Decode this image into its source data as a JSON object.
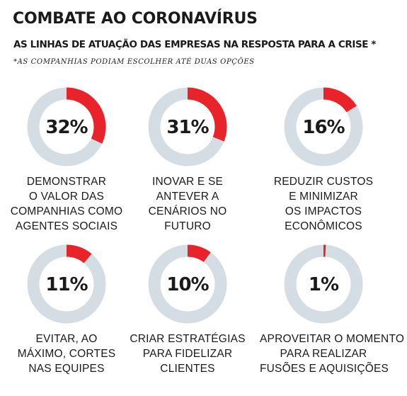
{
  "header": {
    "title": "COMBATE AO CORONAVÍRUS",
    "subtitle": "AS LINHAS DE ATUAÇÃO DAS EMPRESAS NA RESPOSTA PARA A CRISE *",
    "note": "*AS COMPANHIAS PODIAM ESCOLHER ATÉ DUAS OPÇÕES"
  },
  "colors": {
    "accent": "#e8232a",
    "track": "#d5dde4",
    "text": "#1a1a1a"
  },
  "chart_data": {
    "type": "pie",
    "unit": "%",
    "items": [
      {
        "value": 32,
        "value_label": "32%",
        "label_lines": [
          "DEMONSTRAR",
          "O VALOR DAS",
          "COMPANHIAS COMO",
          "AGENTES SOCIAIS"
        ]
      },
      {
        "value": 31,
        "value_label": "31%",
        "label_lines": [
          "INOVAR E SE",
          "ANTEVER A",
          "CENÁRIOS NO",
          "FUTURO"
        ]
      },
      {
        "value": 16,
        "value_label": "16%",
        "label_lines": [
          "REDUZIR CUSTOS",
          "E MINIMIZAR",
          "OS IMPACTOS",
          "ECONÔMICOS"
        ]
      },
      {
        "value": 11,
        "value_label": "11%",
        "label_lines": [
          "EVITAR, AO",
          "MÁXIMO, CORTES",
          "NAS EQUIPES"
        ]
      },
      {
        "value": 10,
        "value_label": "10%",
        "label_lines": [
          "CRIAR ESTRATÉGIAS",
          "PARA FIDELIZAR",
          "CLIENTES"
        ]
      },
      {
        "value": 1,
        "value_label": "1%",
        "label_lines": [
          "APROVEITAR O MOMENTO",
          "PARA REALIZAR",
          "FUSÕES E AQUISIÇÕES"
        ]
      }
    ]
  }
}
